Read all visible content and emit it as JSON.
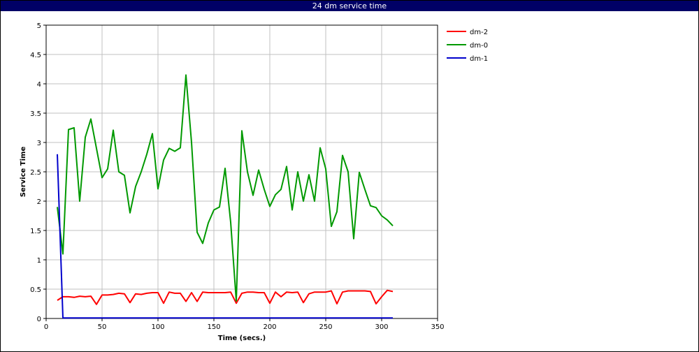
{
  "window": {
    "title": "24 dm service time"
  },
  "chart_data": {
    "type": "line",
    "title": "24 dm service time",
    "xlabel": "Time (secs.)",
    "ylabel": "Service Time",
    "xlim": [
      0,
      350
    ],
    "ylim": [
      0,
      5
    ],
    "xticks": [
      0,
      50,
      100,
      150,
      200,
      250,
      300,
      350
    ],
    "yticks": [
      0,
      0.5,
      1,
      1.5,
      2,
      2.5,
      3,
      3.5,
      4,
      4.5,
      5
    ],
    "grid": true,
    "legend_position": "top-right",
    "series": [
      {
        "name": "dm-2",
        "color": "#ff0000",
        "x": [
          10,
          15,
          20,
          25,
          30,
          35,
          40,
          45,
          50,
          55,
          60,
          65,
          70,
          75,
          80,
          85,
          90,
          95,
          100,
          105,
          110,
          115,
          120,
          125,
          130,
          135,
          140,
          145,
          150,
          155,
          160,
          165,
          170,
          175,
          180,
          185,
          190,
          195,
          200,
          205,
          210,
          215,
          220,
          225,
          230,
          235,
          240,
          245,
          250,
          255,
          260,
          265,
          270,
          275,
          280,
          285,
          290,
          295,
          300,
          305,
          310
        ],
        "y": [
          0.31,
          0.37,
          0.37,
          0.36,
          0.38,
          0.37,
          0.38,
          0.24,
          0.4,
          0.4,
          0.41,
          0.43,
          0.42,
          0.27,
          0.42,
          0.41,
          0.43,
          0.44,
          0.44,
          0.26,
          0.45,
          0.43,
          0.43,
          0.29,
          0.44,
          0.29,
          0.45,
          0.44,
          0.44,
          0.44,
          0.44,
          0.45,
          0.26,
          0.43,
          0.45,
          0.45,
          0.44,
          0.44,
          0.26,
          0.45,
          0.37,
          0.45,
          0.44,
          0.45,
          0.27,
          0.42,
          0.45,
          0.45,
          0.45,
          0.47,
          0.25,
          0.45,
          0.47,
          0.47,
          0.47,
          0.47,
          0.46,
          0.25,
          0.37,
          0.48,
          0.46
        ]
      },
      {
        "name": "dm-0",
        "color": "#009900",
        "x": [
          10,
          15,
          20,
          25,
          30,
          35,
          40,
          45,
          50,
          55,
          60,
          65,
          70,
          75,
          80,
          85,
          90,
          95,
          100,
          105,
          110,
          115,
          120,
          125,
          130,
          135,
          140,
          145,
          150,
          155,
          160,
          165,
          170,
          175,
          180,
          185,
          190,
          195,
          200,
          205,
          210,
          215,
          220,
          225,
          230,
          235,
          240,
          245,
          250,
          255,
          260,
          265,
          270,
          275,
          280,
          285,
          290,
          295,
          300,
          305,
          310
        ],
        "y": [
          1.9,
          1.1,
          3.22,
          3.25,
          2.0,
          3.09,
          3.4,
          2.9,
          2.4,
          2.55,
          3.21,
          2.5,
          2.44,
          1.8,
          2.25,
          2.5,
          2.8,
          3.15,
          2.21,
          2.7,
          2.9,
          2.85,
          2.91,
          4.15,
          3.0,
          1.47,
          1.28,
          1.63,
          1.85,
          1.9,
          2.56,
          1.64,
          0.3,
          3.2,
          2.5,
          2.1,
          2.53,
          2.2,
          1.91,
          2.11,
          2.2,
          2.59,
          1.85,
          2.5,
          2.0,
          2.45,
          2.0,
          2.91,
          2.55,
          1.57,
          1.82,
          2.78,
          2.5,
          1.36,
          2.49,
          2.2,
          1.92,
          1.89,
          1.75,
          1.68,
          1.58
        ]
      },
      {
        "name": "dm-1",
        "color": "#0000cc",
        "x": [
          10,
          15,
          20,
          50,
          100,
          150,
          200,
          250,
          300,
          310
        ],
        "y": [
          2.8,
          0.01,
          0.01,
          0.01,
          0.01,
          0.01,
          0.01,
          0.01,
          0.01,
          0.01
        ]
      }
    ]
  }
}
